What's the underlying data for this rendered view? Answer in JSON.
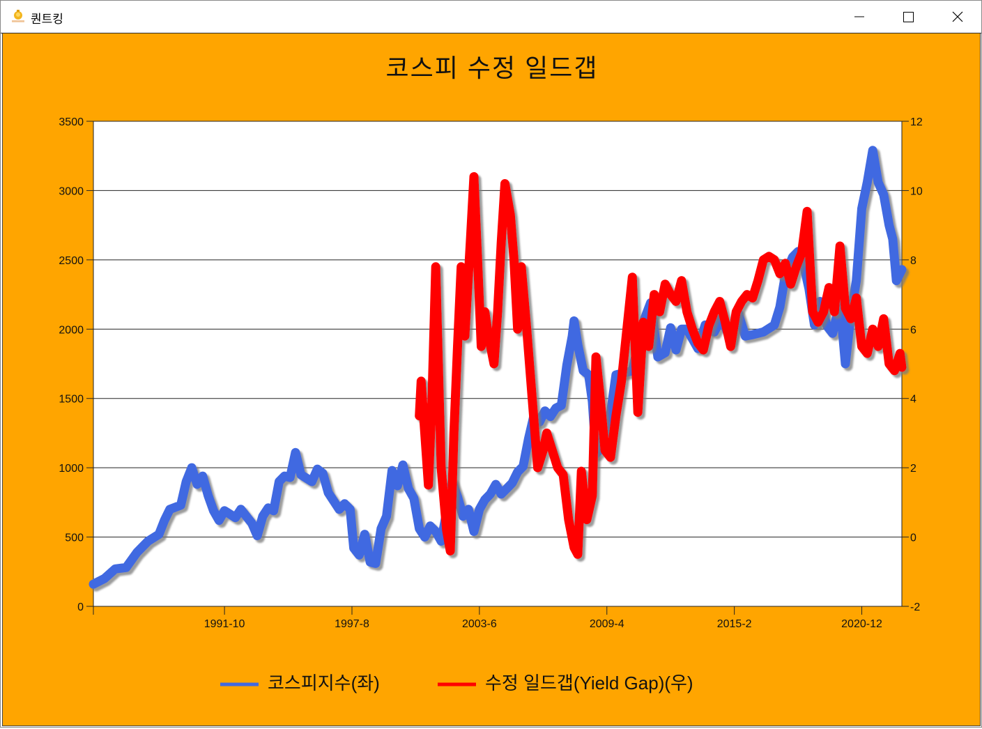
{
  "window": {
    "title": "퀀트킹",
    "minimize": "minimize",
    "maximize": "maximize",
    "close": "close"
  },
  "colors": {
    "background": "#FFA500",
    "kospi": "#4169E1",
    "yield_gap": "#FF0000",
    "plot_area": "#FFFFFF"
  },
  "chart_data": {
    "type": "line",
    "title": "코스피 수정 일드갭",
    "x_tick_labels": [
      "1991-10",
      "1997-8",
      "2003-6",
      "2009-4",
      "2015-2",
      "2020-12"
    ],
    "x_range": [
      "1985-10",
      "2022-10"
    ],
    "y_left": {
      "ylim": [
        0,
        3500
      ],
      "ticks": [
        "0",
        "500",
        "1000",
        "1500",
        "2000",
        "2500",
        "3000",
        "3500"
      ]
    },
    "y_right": {
      "ylim": [
        -2,
        12
      ],
      "ticks": [
        "-2",
        "0",
        "2",
        "4",
        "6",
        "8",
        "10",
        "12"
      ]
    },
    "grid": true,
    "legend_position": "bottom",
    "series": [
      {
        "name": "코스피지수(좌)",
        "axis": "left",
        "color": "#4169E1",
        "points": [
          [
            "1985-10",
            160
          ],
          [
            "1986-4",
            200
          ],
          [
            "1986-10",
            270
          ],
          [
            "1987-4",
            280
          ],
          [
            "1987-10",
            390
          ],
          [
            "1988-4",
            470
          ],
          [
            "1988-10",
            520
          ],
          [
            "1989-1",
            620
          ],
          [
            "1989-4",
            700
          ],
          [
            "1989-10",
            730
          ],
          [
            "1990-1",
            900
          ],
          [
            "1990-4",
            1000
          ],
          [
            "1990-7",
            880
          ],
          [
            "1990-10",
            940
          ],
          [
            "1991-1",
            800
          ],
          [
            "1991-4",
            690
          ],
          [
            "1991-7",
            620
          ],
          [
            "1991-10",
            690
          ],
          [
            "1992-4",
            640
          ],
          [
            "1992-7",
            700
          ],
          [
            "1993-1",
            600
          ],
          [
            "1993-4",
            510
          ],
          [
            "1993-7",
            650
          ],
          [
            "1993-10",
            710
          ],
          [
            "1994-1",
            690
          ],
          [
            "1994-4",
            900
          ],
          [
            "1994-7",
            940
          ],
          [
            "1994-10",
            930
          ],
          [
            "1995-1",
            1110
          ],
          [
            "1995-4",
            950
          ],
          [
            "1995-10",
            900
          ],
          [
            "1996-1",
            990
          ],
          [
            "1996-4",
            960
          ],
          [
            "1996-7",
            820
          ],
          [
            "1996-10",
            760
          ],
          [
            "1997-1",
            700
          ],
          [
            "1997-4",
            740
          ],
          [
            "1997-7",
            700
          ],
          [
            "1997-9",
            420
          ],
          [
            "1997-12",
            370
          ],
          [
            "1998-3",
            520
          ],
          [
            "1998-6",
            320
          ],
          [
            "1998-9",
            310
          ],
          [
            "1998-12",
            560
          ],
          [
            "1999-3",
            650
          ],
          [
            "1999-6",
            980
          ],
          [
            "1999-9",
            870
          ],
          [
            "1999-12",
            1020
          ],
          [
            "2000-3",
            850
          ],
          [
            "2000-6",
            780
          ],
          [
            "2000-9",
            560
          ],
          [
            "2000-12",
            500
          ],
          [
            "2001-3",
            580
          ],
          [
            "2001-6",
            540
          ],
          [
            "2001-9",
            470
          ],
          [
            "2001-12",
            680
          ],
          [
            "2002-3",
            900
          ],
          [
            "2002-6",
            790
          ],
          [
            "2002-9",
            650
          ],
          [
            "2002-12",
            700
          ],
          [
            "2003-3",
            540
          ],
          [
            "2003-6",
            700
          ],
          [
            "2003-9",
            770
          ],
          [
            "2003-12",
            810
          ],
          [
            "2004-3",
            880
          ],
          [
            "2004-6",
            810
          ],
          [
            "2004-9",
            850
          ],
          [
            "2004-12",
            890
          ],
          [
            "2005-3",
            970
          ],
          [
            "2005-6",
            1010
          ],
          [
            "2005-9",
            1210
          ],
          [
            "2005-12",
            1380
          ],
          [
            "2006-3",
            1330
          ],
          [
            "2006-6",
            1410
          ],
          [
            "2006-9",
            1370
          ],
          [
            "2006-12",
            1430
          ],
          [
            "2007-3",
            1450
          ],
          [
            "2007-6",
            1740
          ],
          [
            "2007-9",
            1950
          ],
          [
            "2007-10",
            2060
          ],
          [
            "2007-12",
            1890
          ],
          [
            "2008-3",
            1700
          ],
          [
            "2008-6",
            1670
          ],
          [
            "2008-8",
            1480
          ],
          [
            "2008-10",
            1100
          ],
          [
            "2008-12",
            1130
          ],
          [
            "2009-3",
            1200
          ],
          [
            "2009-6",
            1390
          ],
          [
            "2009-9",
            1670
          ],
          [
            "2009-12",
            1680
          ],
          [
            "2010-3",
            1690
          ],
          [
            "2010-6",
            1700
          ],
          [
            "2010-9",
            1870
          ],
          [
            "2010-12",
            2050
          ],
          [
            "2011-4",
            2190
          ],
          [
            "2011-8",
            1800
          ],
          [
            "2011-12",
            1830
          ],
          [
            "2012-3",
            2010
          ],
          [
            "2012-6",
            1850
          ],
          [
            "2012-9",
            2000
          ],
          [
            "2012-12",
            2000
          ],
          [
            "2013-6",
            1860
          ],
          [
            "2013-10",
            2030
          ],
          [
            "2014-3",
            1980
          ],
          [
            "2014-7",
            2080
          ],
          [
            "2014-12",
            1920
          ],
          [
            "2015-4",
            2120
          ],
          [
            "2015-8",
            1950
          ],
          [
            "2015-12",
            1960
          ],
          [
            "2016-6",
            1980
          ],
          [
            "2016-12",
            2030
          ],
          [
            "2017-3",
            2160
          ],
          [
            "2017-6",
            2390
          ],
          [
            "2017-10",
            2520
          ],
          [
            "2018-1",
            2560
          ],
          [
            "2018-4",
            2470
          ],
          [
            "2018-7",
            2290
          ],
          [
            "2018-10",
            2030
          ],
          [
            "2019-1",
            2200
          ],
          [
            "2019-5",
            2020
          ],
          [
            "2019-8",
            1970
          ],
          [
            "2019-12",
            2190
          ],
          [
            "2020-3",
            1750
          ],
          [
            "2020-6",
            2110
          ],
          [
            "2020-9",
            2350
          ],
          [
            "2020-12",
            2870
          ],
          [
            "2021-3",
            3060
          ],
          [
            "2021-6",
            3290
          ],
          [
            "2021-9",
            3060
          ],
          [
            "2021-12",
            2970
          ],
          [
            "2022-3",
            2750
          ],
          [
            "2022-5",
            2650
          ],
          [
            "2022-7",
            2350
          ],
          [
            "2022-10",
            2430
          ]
        ]
      },
      {
        "name": "수정 일드갭(Yield Gap)(우)",
        "axis": "right",
        "color": "#FF0000",
        "points": [
          [
            "2000-9",
            3.5
          ],
          [
            "2000-10",
            4.5
          ],
          [
            "2000-12",
            3.0
          ],
          [
            "2001-2",
            1.5
          ],
          [
            "2001-4",
            4.0
          ],
          [
            "2001-6",
            7.8
          ],
          [
            "2001-9",
            2.0
          ],
          [
            "2001-12",
            0.2
          ],
          [
            "2002-2",
            -0.4
          ],
          [
            "2002-4",
            3.0
          ],
          [
            "2002-6",
            5.5
          ],
          [
            "2002-8",
            7.8
          ],
          [
            "2002-10",
            5.8
          ],
          [
            "2003-1",
            8.5
          ],
          [
            "2003-3",
            10.4
          ],
          [
            "2003-5",
            8.0
          ],
          [
            "2003-7",
            5.5
          ],
          [
            "2003-9",
            6.5
          ],
          [
            "2003-11",
            5.8
          ],
          [
            "2004-2",
            5.0
          ],
          [
            "2004-4",
            6.5
          ],
          [
            "2004-6",
            8.5
          ],
          [
            "2004-8",
            10.2
          ],
          [
            "2004-11",
            9.3
          ],
          [
            "2005-1",
            8.0
          ],
          [
            "2005-3",
            6.0
          ],
          [
            "2005-5",
            7.8
          ],
          [
            "2005-8",
            6.0
          ],
          [
            "2005-11",
            4.0
          ],
          [
            "2006-2",
            2.0
          ],
          [
            "2006-5",
            2.5
          ],
          [
            "2006-7",
            3.0
          ],
          [
            "2006-10",
            2.5
          ],
          [
            "2007-1",
            2.0
          ],
          [
            "2007-4",
            1.8
          ],
          [
            "2007-7",
            0.5
          ],
          [
            "2007-10",
            -0.3
          ],
          [
            "2007-12",
            -0.5
          ],
          [
            "2008-2",
            1.9
          ],
          [
            "2008-5",
            0.5
          ],
          [
            "2008-8",
            1.2
          ],
          [
            "2008-10",
            5.2
          ],
          [
            "2008-12",
            4.2
          ],
          [
            "2009-3",
            2.5
          ],
          [
            "2009-6",
            2.3
          ],
          [
            "2009-9",
            3.5
          ],
          [
            "2009-12",
            4.5
          ],
          [
            "2010-3",
            6.0
          ],
          [
            "2010-6",
            7.5
          ],
          [
            "2010-9",
            3.6
          ],
          [
            "2010-12",
            6.2
          ],
          [
            "2011-3",
            5.5
          ],
          [
            "2011-6",
            7.0
          ],
          [
            "2011-9",
            6.5
          ],
          [
            "2011-12",
            7.3
          ],
          [
            "2012-3",
            7.0
          ],
          [
            "2012-6",
            6.8
          ],
          [
            "2012-9",
            7.4
          ],
          [
            "2012-12",
            6.5
          ],
          [
            "2013-3",
            6.0
          ],
          [
            "2013-6",
            5.6
          ],
          [
            "2013-9",
            5.4
          ],
          [
            "2013-12",
            6.1
          ],
          [
            "2014-3",
            6.5
          ],
          [
            "2014-6",
            6.8
          ],
          [
            "2014-9",
            6.2
          ],
          [
            "2014-12",
            5.5
          ],
          [
            "2015-3",
            6.5
          ],
          [
            "2015-6",
            6.8
          ],
          [
            "2015-9",
            7.0
          ],
          [
            "2015-12",
            6.9
          ],
          [
            "2016-3",
            7.4
          ],
          [
            "2016-6",
            8.0
          ],
          [
            "2016-9",
            8.1
          ],
          [
            "2016-12",
            8.0
          ],
          [
            "2017-3",
            7.6
          ],
          [
            "2017-6",
            7.9
          ],
          [
            "2017-9",
            7.3
          ],
          [
            "2017-12",
            7.8
          ],
          [
            "2018-3",
            8.2
          ],
          [
            "2018-6",
            9.4
          ],
          [
            "2018-9",
            6.5
          ],
          [
            "2018-12",
            6.2
          ],
          [
            "2019-3",
            6.5
          ],
          [
            "2019-6",
            7.2
          ],
          [
            "2019-9",
            6.5
          ],
          [
            "2019-12",
            8.4
          ],
          [
            "2020-3",
            6.6
          ],
          [
            "2020-6",
            6.3
          ],
          [
            "2020-9",
            6.9
          ],
          [
            "2020-12",
            5.5
          ],
          [
            "2021-3",
            5.3
          ],
          [
            "2021-6",
            6.0
          ],
          [
            "2021-9",
            5.5
          ],
          [
            "2021-12",
            6.3
          ],
          [
            "2022-3",
            5.0
          ],
          [
            "2022-6",
            4.8
          ],
          [
            "2022-9",
            5.3
          ],
          [
            "2022-10",
            4.9
          ]
        ]
      }
    ]
  }
}
